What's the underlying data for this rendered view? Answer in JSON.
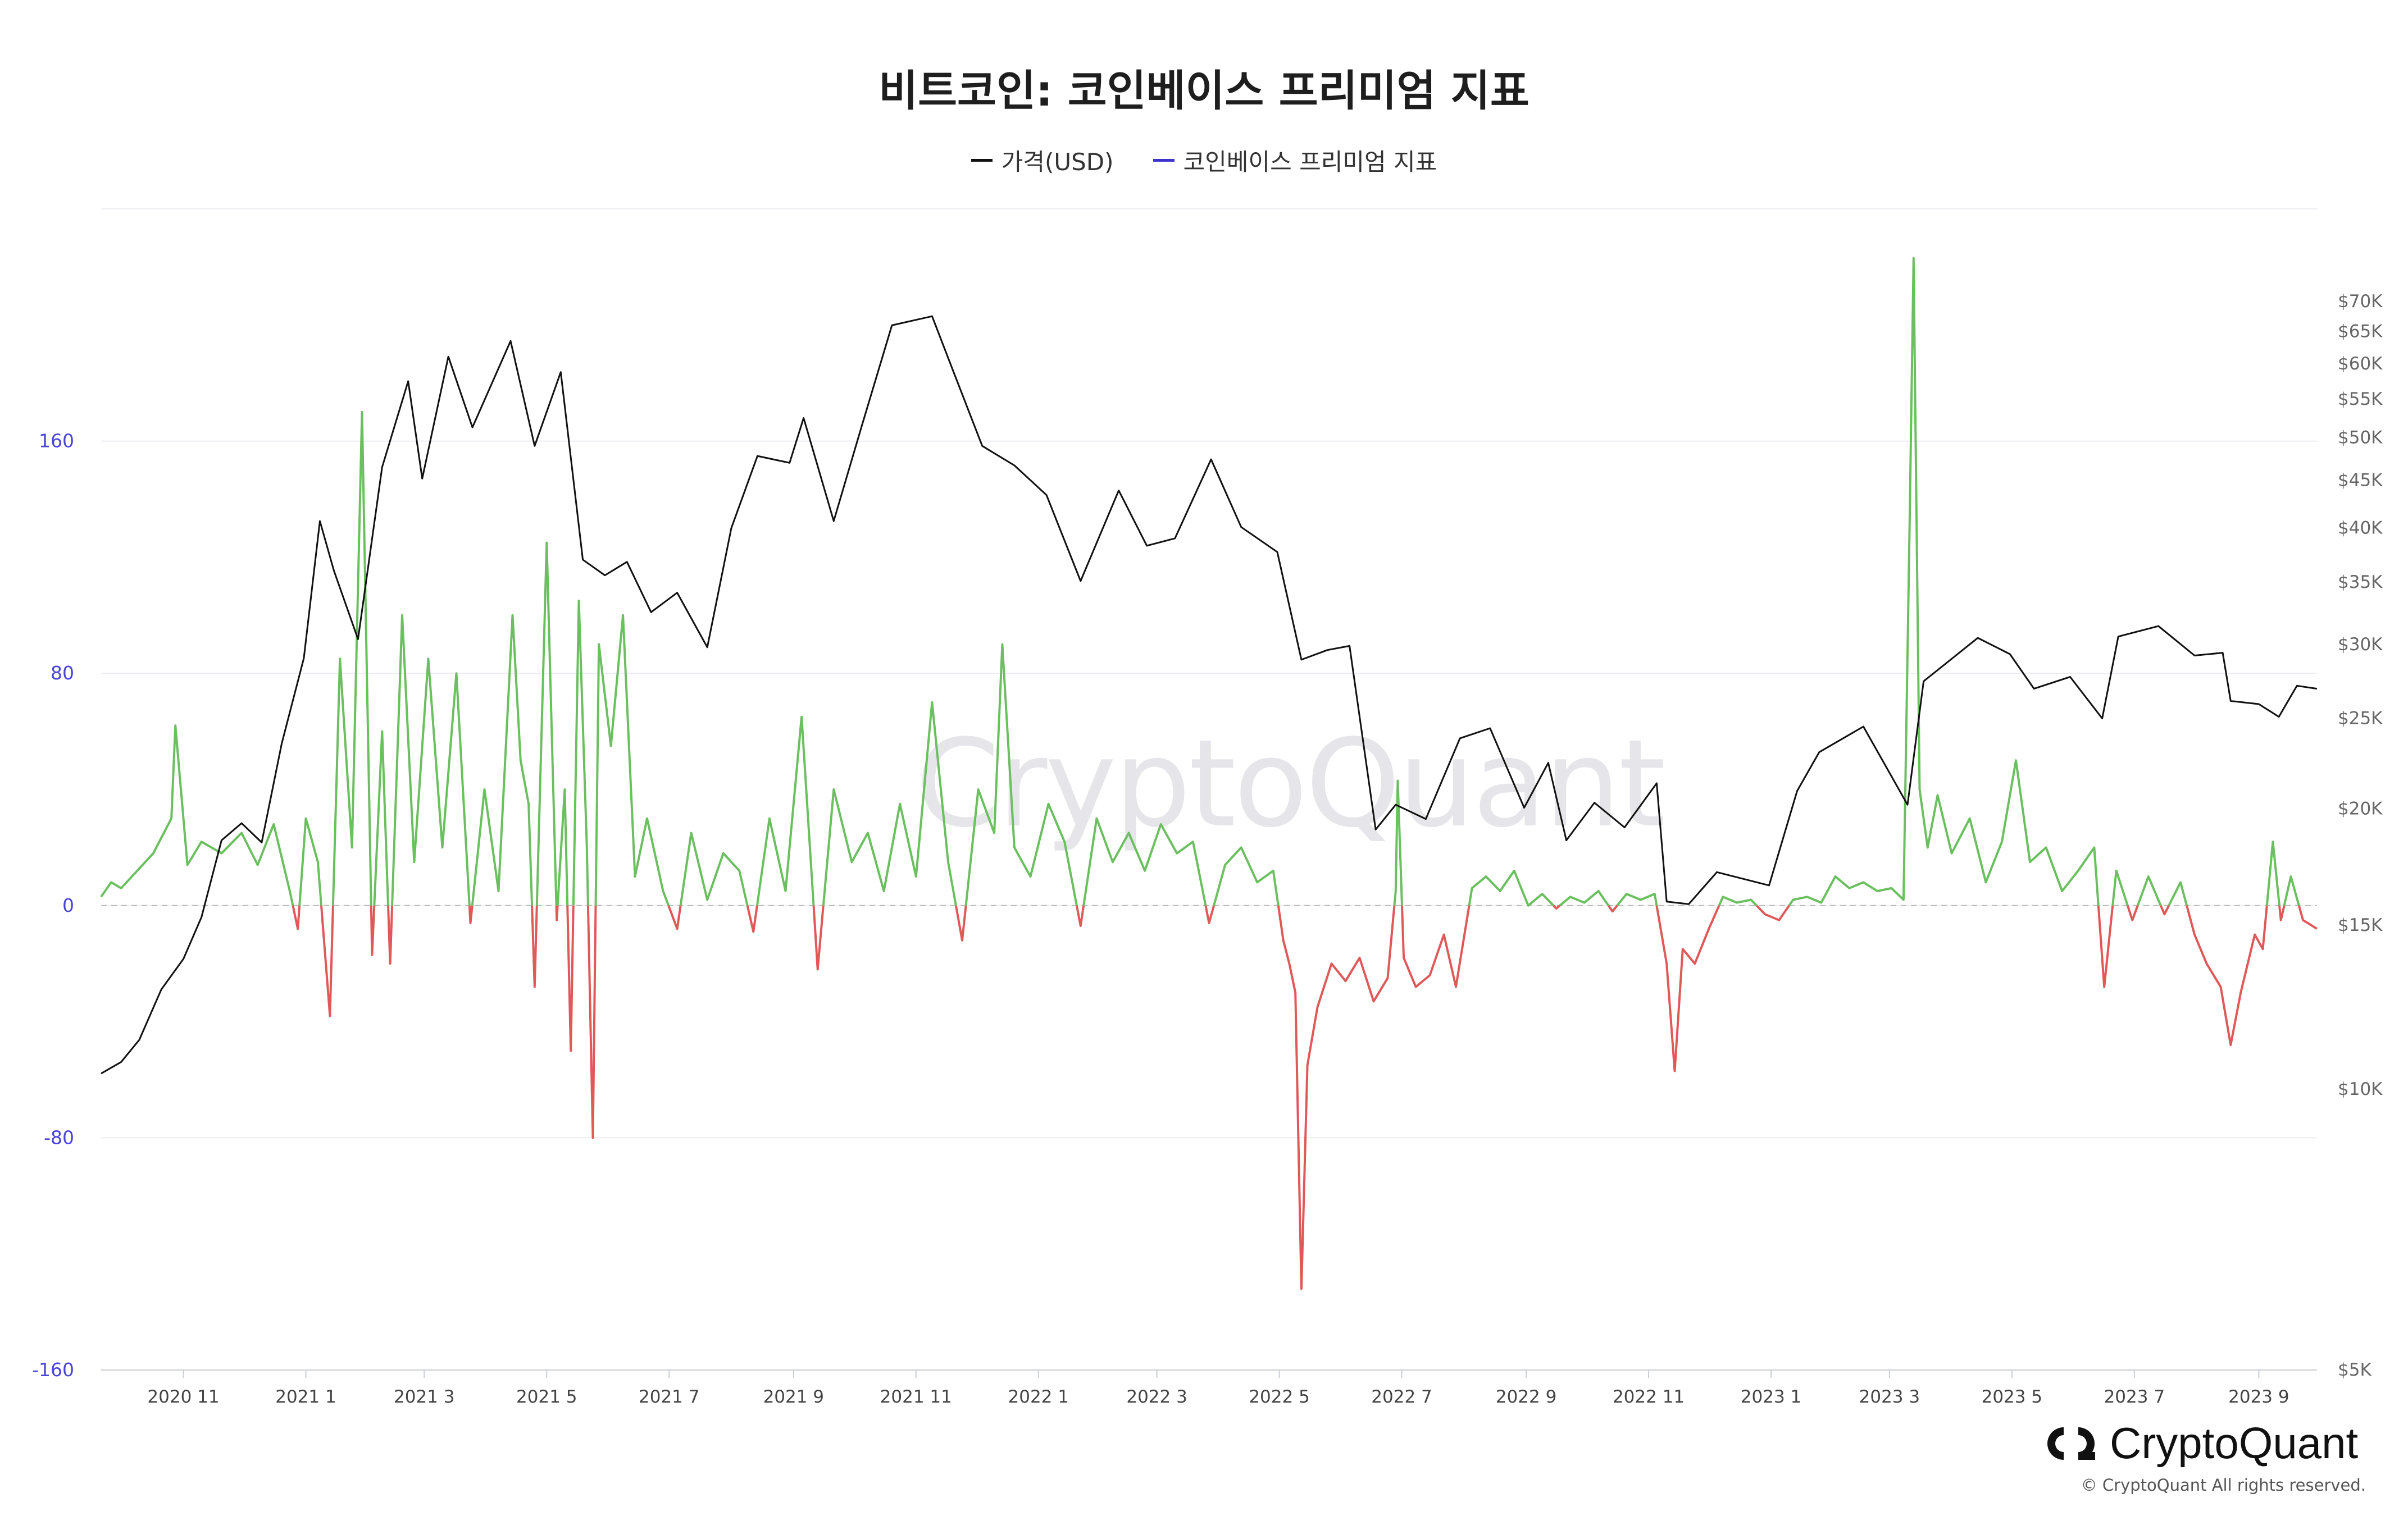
{
  "page": {
    "title": "비트코인: 코인베이스 프리미엄 지표",
    "watermark": "CryptoQuant",
    "brand": "CryptoQuant",
    "copyright": "© CryptoQuant All rights reserved.",
    "icon": "cryptoquant-logo-icon"
  },
  "colors": {
    "price_line": "#111111",
    "premium_positive": "#6abf5e",
    "premium_negative": "#e05858",
    "left_axis": "#4a44d8",
    "legend_premium": "#3b33cc",
    "zero_line": "#bbbbbb"
  },
  "chart_data": {
    "type": "line",
    "title": "비트코인: 코인베이스 프리미엄 지표",
    "legend": [
      "가격(USD)",
      "코인베이스 프리미엄 지표"
    ],
    "legend_position": "top-center",
    "grid": true,
    "x_ticks": [
      "2020 11",
      "2021 1",
      "2021 3",
      "2021 5",
      "2021 7",
      "2021 9",
      "2021 11",
      "2022 1",
      "2022 3",
      "2022 5",
      "2022 7",
      "2022 9",
      "2022 11",
      "2023 1",
      "2023 3",
      "2023 5",
      "2023 7",
      "2023 9"
    ],
    "x_range": [
      "2020-09-21",
      "2023-09-30"
    ],
    "y_left": {
      "label": "",
      "ylim": [
        -160,
        240
      ],
      "ticks": [
        "-160",
        "-80",
        "0",
        "80",
        "160"
      ]
    },
    "y_right": {
      "label": "",
      "scale": "log",
      "ylim": [
        5000,
        88000
      ],
      "ticks": [
        "$5K",
        "$10K",
        "$15K",
        "$20K",
        "$25K",
        "$30K",
        "$35K",
        "$40K",
        "$45K",
        "$50K",
        "$55K",
        "$60K",
        "$65K",
        "$70K"
      ]
    },
    "series": [
      {
        "name": "가격(USD)",
        "axis": "right",
        "points": [
          [
            "2020-09-21",
            10400
          ],
          [
            "2020-10-01",
            10700
          ],
          [
            "2020-10-10",
            11300
          ],
          [
            "2020-10-21",
            12800
          ],
          [
            "2020-11-01",
            13800
          ],
          [
            "2020-11-10",
            15300
          ],
          [
            "2020-11-20",
            18500
          ],
          [
            "2020-11-30",
            19300
          ],
          [
            "2020-12-10",
            18400
          ],
          [
            "2020-12-20",
            23500
          ],
          [
            "2020-12-31",
            29000
          ],
          [
            "2021-01-08",
            40700
          ],
          [
            "2021-01-15",
            36000
          ],
          [
            "2021-01-27",
            30400
          ],
          [
            "2021-02-08",
            46500
          ],
          [
            "2021-02-21",
            57500
          ],
          [
            "2021-02-28",
            45200
          ],
          [
            "2021-03-13",
            61100
          ],
          [
            "2021-03-25",
            51300
          ],
          [
            "2021-04-13",
            63500
          ],
          [
            "2021-04-25",
            49000
          ],
          [
            "2021-05-08",
            58800
          ],
          [
            "2021-05-19",
            37000
          ],
          [
            "2021-05-30",
            35600
          ],
          [
            "2021-06-10",
            36800
          ],
          [
            "2021-06-22",
            32500
          ],
          [
            "2021-07-05",
            34100
          ],
          [
            "2021-07-20",
            29800
          ],
          [
            "2021-08-01",
            40000
          ],
          [
            "2021-08-14",
            47800
          ],
          [
            "2021-08-30",
            47000
          ],
          [
            "2021-09-06",
            52500
          ],
          [
            "2021-09-21",
            40700
          ],
          [
            "2021-10-05",
            51500
          ],
          [
            "2021-10-20",
            66000
          ],
          [
            "2021-11-09",
            67500
          ],
          [
            "2021-11-20",
            58600
          ],
          [
            "2021-12-04",
            49000
          ],
          [
            "2021-12-20",
            46700
          ],
          [
            "2022-01-05",
            43400
          ],
          [
            "2022-01-22",
            35100
          ],
          [
            "2022-02-10",
            43900
          ],
          [
            "2022-02-24",
            38300
          ],
          [
            "2022-03-10",
            39000
          ],
          [
            "2022-03-28",
            47400
          ],
          [
            "2022-04-12",
            40100
          ],
          [
            "2022-04-30",
            37700
          ],
          [
            "2022-05-12",
            28900
          ],
          [
            "2022-05-25",
            29600
          ],
          [
            "2022-06-05",
            29900
          ],
          [
            "2022-06-18",
            19000
          ],
          [
            "2022-06-28",
            20200
          ],
          [
            "2022-07-13",
            19500
          ],
          [
            "2022-07-30",
            23800
          ],
          [
            "2022-08-14",
            24400
          ],
          [
            "2022-08-31",
            20050
          ],
          [
            "2022-09-12",
            22400
          ],
          [
            "2022-09-21",
            18500
          ],
          [
            "2022-10-05",
            20300
          ],
          [
            "2022-10-20",
            19100
          ],
          [
            "2022-11-05",
            21300
          ],
          [
            "2022-11-10",
            15900
          ],
          [
            "2022-11-21",
            15800
          ],
          [
            "2022-12-05",
            17100
          ],
          [
            "2022-12-31",
            16550
          ],
          [
            "2023-01-14",
            20900
          ],
          [
            "2023-01-25",
            23000
          ],
          [
            "2023-02-16",
            24500
          ],
          [
            "2023-03-10",
            20200
          ],
          [
            "2023-03-18",
            27400
          ],
          [
            "2023-04-14",
            30500
          ],
          [
            "2023-04-30",
            29300
          ],
          [
            "2023-05-12",
            26900
          ],
          [
            "2023-05-30",
            27700
          ],
          [
            "2023-06-15",
            25000
          ],
          [
            "2023-06-23",
            30600
          ],
          [
            "2023-07-13",
            31400
          ],
          [
            "2023-07-31",
            29200
          ],
          [
            "2023-08-14",
            29400
          ],
          [
            "2023-08-18",
            26100
          ],
          [
            "2023-09-01",
            25900
          ],
          [
            "2023-09-11",
            25100
          ],
          [
            "2023-09-20",
            27100
          ],
          [
            "2023-09-30",
            26900
          ]
        ]
      },
      {
        "name": "코인베이스 프리미엄 지표",
        "axis": "left",
        "points": [
          [
            "2020-09-21",
            3
          ],
          [
            "2020-09-26",
            8
          ],
          [
            "2020-10-01",
            6
          ],
          [
            "2020-10-09",
            12
          ],
          [
            "2020-10-17",
            18
          ],
          [
            "2020-10-26",
            30
          ],
          [
            "2020-10-28",
            62
          ],
          [
            "2020-11-03",
            14
          ],
          [
            "2020-11-10",
            22
          ],
          [
            "2020-11-20",
            18
          ],
          [
            "2020-11-30",
            25
          ],
          [
            "2020-12-08",
            14
          ],
          [
            "2020-12-16",
            28
          ],
          [
            "2020-12-24",
            5
          ],
          [
            "2020-12-28",
            -8
          ],
          [
            "2021-01-01",
            30
          ],
          [
            "2021-01-07",
            15
          ],
          [
            "2021-01-13",
            -38
          ],
          [
            "2021-01-18",
            85
          ],
          [
            "2021-01-24",
            20
          ],
          [
            "2021-01-29",
            170
          ],
          [
            "2021-02-03",
            -17
          ],
          [
            "2021-02-08",
            60
          ],
          [
            "2021-02-12",
            -20
          ],
          [
            "2021-02-18",
            100
          ],
          [
            "2021-02-24",
            15
          ],
          [
            "2021-03-03",
            85
          ],
          [
            "2021-03-10",
            20
          ],
          [
            "2021-03-17",
            80
          ],
          [
            "2021-03-24",
            -6
          ],
          [
            "2021-03-31",
            40
          ],
          [
            "2021-04-07",
            5
          ],
          [
            "2021-04-14",
            100
          ],
          [
            "2021-04-18",
            50
          ],
          [
            "2021-04-22",
            35
          ],
          [
            "2021-04-25",
            -28
          ],
          [
            "2021-05-01",
            125
          ],
          [
            "2021-05-06",
            -5
          ],
          [
            "2021-05-10",
            40
          ],
          [
            "2021-05-13",
            -50
          ],
          [
            "2021-05-17",
            105
          ],
          [
            "2021-05-21",
            20
          ],
          [
            "2021-05-24",
            -80
          ],
          [
            "2021-05-27",
            90
          ],
          [
            "2021-06-02",
            55
          ],
          [
            "2021-06-08",
            100
          ],
          [
            "2021-06-14",
            10
          ],
          [
            "2021-06-20",
            30
          ],
          [
            "2021-06-28",
            5
          ],
          [
            "2021-07-05",
            -8
          ],
          [
            "2021-07-12",
            25
          ],
          [
            "2021-07-20",
            2
          ],
          [
            "2021-07-28",
            18
          ],
          [
            "2021-08-05",
            12
          ],
          [
            "2021-08-12",
            -9
          ],
          [
            "2021-08-20",
            30
          ],
          [
            "2021-08-28",
            5
          ],
          [
            "2021-09-05",
            65
          ],
          [
            "2021-09-13",
            -22
          ],
          [
            "2021-09-21",
            40
          ],
          [
            "2021-09-30",
            15
          ],
          [
            "2021-10-08",
            25
          ],
          [
            "2021-10-16",
            5
          ],
          [
            "2021-10-24",
            35
          ],
          [
            "2021-11-01",
            10
          ],
          [
            "2021-11-09",
            70
          ],
          [
            "2021-11-17",
            15
          ],
          [
            "2021-11-24",
            -12
          ],
          [
            "2021-12-02",
            40
          ],
          [
            "2021-12-10",
            25
          ],
          [
            "2021-12-14",
            90
          ],
          [
            "2021-12-20",
            20
          ],
          [
            "2021-12-28",
            10
          ],
          [
            "2022-01-06",
            35
          ],
          [
            "2022-01-14",
            22
          ],
          [
            "2022-01-22",
            -7
          ],
          [
            "2022-01-30",
            30
          ],
          [
            "2022-02-07",
            15
          ],
          [
            "2022-02-15",
            25
          ],
          [
            "2022-02-23",
            12
          ],
          [
            "2022-03-03",
            28
          ],
          [
            "2022-03-11",
            18
          ],
          [
            "2022-03-19",
            22
          ],
          [
            "2022-03-27",
            -6
          ],
          [
            "2022-04-04",
            14
          ],
          [
            "2022-04-12",
            20
          ],
          [
            "2022-04-20",
            8
          ],
          [
            "2022-04-28",
            12
          ],
          [
            "2022-05-03",
            -12
          ],
          [
            "2022-05-06",
            -20
          ],
          [
            "2022-05-09",
            -30
          ],
          [
            "2022-05-12",
            -132
          ],
          [
            "2022-05-15",
            -55
          ],
          [
            "2022-05-20",
            -35
          ],
          [
            "2022-05-27",
            -20
          ],
          [
            "2022-06-03",
            -26
          ],
          [
            "2022-06-10",
            -18
          ],
          [
            "2022-06-17",
            -33
          ],
          [
            "2022-06-24",
            -25
          ],
          [
            "2022-06-28",
            5
          ],
          [
            "2022-06-29",
            43
          ],
          [
            "2022-07-02",
            -18
          ],
          [
            "2022-07-08",
            -28
          ],
          [
            "2022-07-15",
            -24
          ],
          [
            "2022-07-22",
            -10
          ],
          [
            "2022-07-28",
            -28
          ],
          [
            "2022-08-05",
            6
          ],
          [
            "2022-08-12",
            10
          ],
          [
            "2022-08-19",
            5
          ],
          [
            "2022-08-26",
            12
          ],
          [
            "2022-09-02",
            0
          ],
          [
            "2022-09-09",
            4
          ],
          [
            "2022-09-16",
            -1
          ],
          [
            "2022-09-23",
            3
          ],
          [
            "2022-09-30",
            1
          ],
          [
            "2022-10-07",
            5
          ],
          [
            "2022-10-14",
            -2
          ],
          [
            "2022-10-21",
            4
          ],
          [
            "2022-10-28",
            2
          ],
          [
            "2022-11-04",
            4
          ],
          [
            "2022-11-10",
            -20
          ],
          [
            "2022-11-14",
            -57
          ],
          [
            "2022-11-18",
            -15
          ],
          [
            "2022-11-24",
            -20
          ],
          [
            "2022-12-01",
            -8
          ],
          [
            "2022-12-08",
            3
          ],
          [
            "2022-12-15",
            1
          ],
          [
            "2022-12-22",
            2
          ],
          [
            "2022-12-29",
            -3
          ],
          [
            "2023-01-05",
            -5
          ],
          [
            "2023-01-12",
            2
          ],
          [
            "2023-01-19",
            3
          ],
          [
            "2023-01-26",
            1
          ],
          [
            "2023-02-02",
            10
          ],
          [
            "2023-02-09",
            6
          ],
          [
            "2023-02-16",
            8
          ],
          [
            "2023-02-23",
            5
          ],
          [
            "2023-03-02",
            6
          ],
          [
            "2023-03-08",
            2
          ],
          [
            "2023-03-11",
            130
          ],
          [
            "2023-03-13",
            223
          ],
          [
            "2023-03-16",
            40
          ],
          [
            "2023-03-20",
            20
          ],
          [
            "2023-03-25",
            38
          ],
          [
            "2023-04-01",
            18
          ],
          [
            "2023-04-10",
            30
          ],
          [
            "2023-04-18",
            8
          ],
          [
            "2023-04-26",
            22
          ],
          [
            "2023-05-03",
            50
          ],
          [
            "2023-05-10",
            15
          ],
          [
            "2023-05-18",
            20
          ],
          [
            "2023-05-26",
            5
          ],
          [
            "2023-06-03",
            12
          ],
          [
            "2023-06-11",
            20
          ],
          [
            "2023-06-16",
            -28
          ],
          [
            "2023-06-22",
            12
          ],
          [
            "2023-06-30",
            -5
          ],
          [
            "2023-07-08",
            10
          ],
          [
            "2023-07-16",
            -3
          ],
          [
            "2023-07-24",
            8
          ],
          [
            "2023-07-31",
            -10
          ],
          [
            "2023-08-06",
            -20
          ],
          [
            "2023-08-13",
            -28
          ],
          [
            "2023-08-18",
            -48
          ],
          [
            "2023-08-23",
            -30
          ],
          [
            "2023-08-30",
            -10
          ],
          [
            "2023-09-03",
            -15
          ],
          [
            "2023-09-08",
            22
          ],
          [
            "2023-09-12",
            -5
          ],
          [
            "2023-09-17",
            10
          ],
          [
            "2023-09-23",
            -5
          ],
          [
            "2023-09-30",
            -8
          ]
        ]
      }
    ]
  }
}
